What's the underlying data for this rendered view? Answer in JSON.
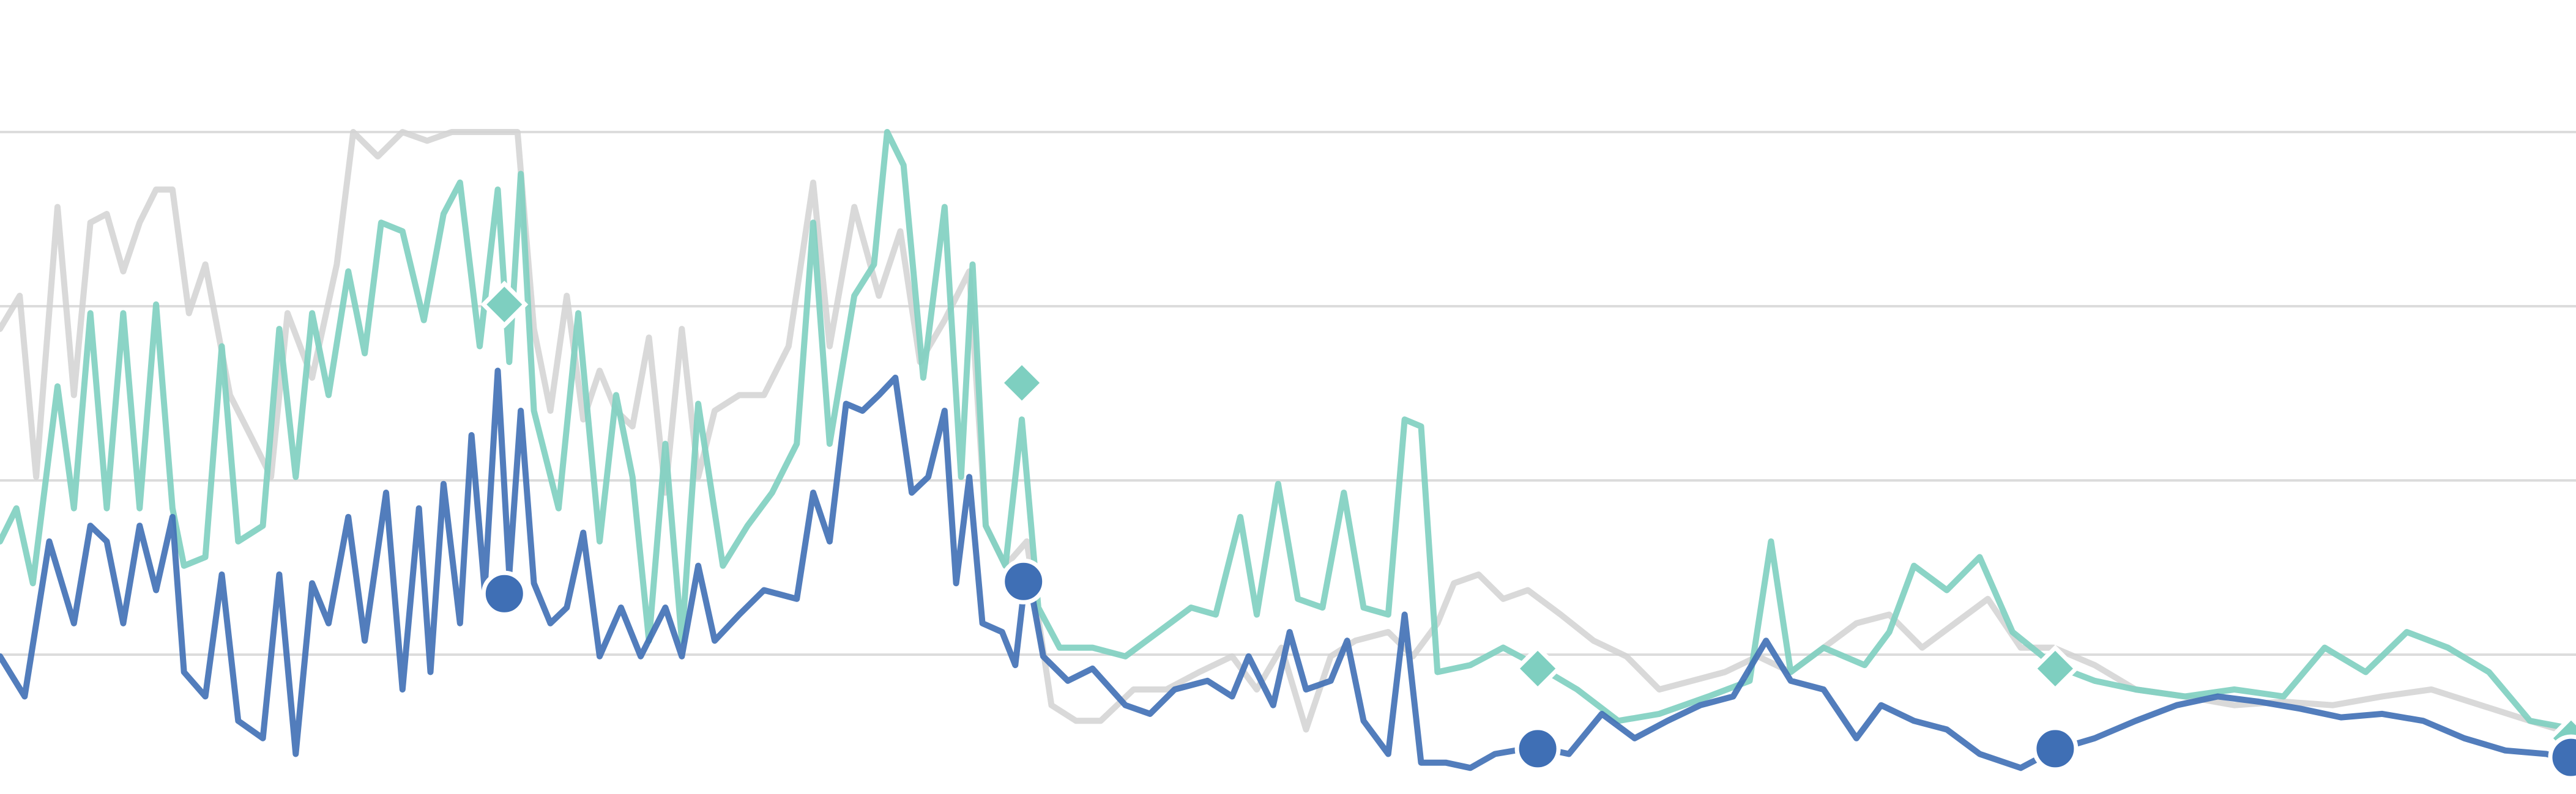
{
  "chart_data": {
    "type": "line",
    "xlim": [
      0,
      1568
    ],
    "ylim": [
      0.2,
      4.5
    ],
    "yticks": [
      1,
      2,
      3,
      4
    ],
    "grid": true,
    "series": [
      {
        "color": "#d2d2d2",
        "x": [
          0,
          12,
          22,
          35,
          45,
          55,
          65,
          75,
          85,
          95,
          105,
          115,
          125,
          140,
          155,
          165,
          175,
          190,
          205,
          215,
          230,
          245,
          260,
          275,
          290,
          305,
          315,
          325,
          335,
          345,
          355,
          365,
          375,
          385,
          395,
          405,
          415,
          425,
          435,
          450,
          465,
          480,
          495,
          505,
          520,
          535,
          548,
          560,
          575,
          590,
          600,
          612,
          625,
          640,
          655,
          670,
          690,
          710,
          730,
          750,
          765,
          780,
          795,
          810,
          825,
          845,
          860,
          875,
          885,
          900,
          915,
          930,
          950,
          970,
          990,
          1010,
          1030,
          1050,
          1070,
          1090,
          1110,
          1130,
          1150,
          1170,
          1190,
          1210,
          1230,
          1250,
          1275,
          1300,
          1330,
          1360,
          1390,
          1420,
          1450,
          1480,
          1510,
          1540,
          1568
        ],
        "values": [
          2.87,
          3.06,
          2.02,
          3.57,
          2.49,
          3.48,
          3.53,
          3.2,
          3.48,
          3.67,
          3.67,
          2.96,
          3.24,
          2.49,
          2.21,
          2.02,
          2.96,
          2.59,
          3.24,
          4.0,
          3.86,
          4.0,
          3.95,
          4.0,
          4.0,
          4.0,
          4.0,
          2.87,
          2.4,
          3.06,
          2.35,
          2.63,
          2.4,
          2.31,
          2.82,
          1.93,
          2.87,
          2.02,
          2.4,
          2.49,
          2.49,
          2.77,
          3.71,
          2.77,
          3.57,
          3.06,
          3.43,
          2.68,
          2.92,
          3.2,
          1.74,
          1.51,
          1.65,
          0.71,
          0.62,
          0.62,
          0.8,
          0.8,
          0.9,
          0.99,
          0.8,
          1.04,
          0.57,
          0.99,
          1.08,
          1.13,
          0.99,
          1.18,
          1.41,
          1.46,
          1.32,
          1.37,
          1.23,
          1.08,
          0.99,
          0.8,
          0.85,
          0.9,
          0.99,
          0.9,
          1.04,
          1.18,
          1.23,
          1.04,
          1.18,
          1.32,
          1.04,
          1.04,
          0.94,
          0.8,
          0.76,
          0.71,
          0.73,
          0.71,
          0.76,
          0.8,
          0.71,
          0.62,
          0.54
        ]
      },
      {
        "color": "#7ecfc0",
        "marker": "diamond",
        "x": [
          0,
          10,
          20,
          35,
          45,
          55,
          65,
          75,
          85,
          95,
          105,
          112,
          125,
          135,
          145,
          160,
          170,
          180,
          190,
          200,
          212,
          222,
          232,
          245,
          258,
          270,
          280,
          292,
          303,
          310,
          317,
          325,
          340,
          352,
          365,
          375,
          385,
          395,
          405,
          415,
          425,
          440,
          455,
          470,
          485,
          495,
          505,
          520,
          532,
          540,
          550,
          562,
          575,
          585,
          592,
          600,
          612,
          622,
          632,
          645,
          665,
          685,
          705,
          725,
          740,
          755,
          765,
          778,
          790,
          805,
          818,
          830,
          845,
          855,
          865,
          875,
          895,
          915,
          935,
          960,
          985,
          1010,
          1040,
          1065,
          1078,
          1090,
          1110,
          1135,
          1150,
          1165,
          1185,
          1205,
          1225,
          1250,
          1275,
          1300,
          1330,
          1360,
          1390,
          1415,
          1440,
          1465,
          1490,
          1515,
          1540,
          1568
        ],
        "values": [
          1.65,
          1.84,
          1.41,
          2.54,
          1.84,
          2.96,
          1.84,
          2.96,
          1.84,
          3.01,
          1.84,
          1.51,
          1.56,
          2.77,
          1.65,
          1.74,
          2.87,
          2.02,
          2.96,
          2.49,
          3.2,
          2.73,
          3.48,
          3.43,
          2.92,
          3.53,
          3.71,
          2.77,
          3.67,
          2.68,
          3.76,
          2.4,
          1.84,
          2.96,
          1.65,
          2.49,
          2.02,
          1.08,
          2.21,
          1.08,
          2.44,
          1.51,
          1.74,
          1.93,
          2.21,
          3.48,
          2.21,
          3.06,
          3.24,
          4.0,
          3.81,
          2.59,
          3.57,
          2.02,
          3.24,
          1.74,
          1.51,
          2.35,
          1.27,
          1.04,
          1.04,
          0.99,
          1.13,
          1.27,
          1.23,
          1.79,
          1.23,
          1.98,
          1.32,
          1.27,
          1.93,
          1.27,
          1.23,
          2.35,
          2.31,
          0.9,
          0.94,
          1.04,
          0.94,
          0.8,
          0.62,
          0.66,
          0.76,
          0.85,
          1.65,
          0.9,
          1.04,
          0.94,
          1.13,
          1.51,
          1.37,
          1.56,
          1.13,
          0.94,
          0.85,
          0.8,
          0.76,
          0.8,
          0.76,
          1.04,
          0.9,
          1.13,
          1.04,
          0.9,
          0.62,
          0.57
        ],
        "markers": {
          "x": [
            307,
            622,
            936,
            1251,
            1565
          ],
          "values": [
            3.01,
            2.56,
            0.92,
            0.92,
            0.52
          ]
        }
      },
      {
        "color": "#3f6fb5",
        "marker": "circle",
        "x": [
          0,
          15,
          30,
          45,
          55,
          65,
          75,
          85,
          95,
          105,
          112,
          125,
          135,
          145,
          160,
          170,
          180,
          190,
          200,
          212,
          222,
          235,
          245,
          255,
          262,
          270,
          280,
          287,
          295,
          303,
          310,
          317,
          325,
          335,
          345,
          355,
          365,
          378,
          390,
          405,
          415,
          425,
          435,
          450,
          465,
          485,
          495,
          505,
          515,
          525,
          535,
          545,
          555,
          565,
          575,
          582,
          590,
          598,
          610,
          618,
          625,
          635,
          650,
          665,
          685,
          700,
          715,
          735,
          750,
          760,
          775,
          785,
          795,
          810,
          820,
          830,
          845,
          855,
          865,
          880,
          895,
          910,
          935,
          955,
          975,
          995,
          1015,
          1035,
          1055,
          1075,
          1090,
          1110,
          1130,
          1145,
          1165,
          1185,
          1205,
          1230,
          1250,
          1275,
          1300,
          1325,
          1350,
          1375,
          1400,
          1425,
          1450,
          1475,
          1500,
          1525,
          1550,
          1568
        ],
        "values": [
          0.99,
          0.76,
          1.65,
          1.18,
          1.74,
          1.65,
          1.18,
          1.74,
          1.37,
          1.79,
          0.9,
          0.76,
          1.46,
          0.62,
          0.52,
          1.46,
          0.43,
          1.41,
          1.18,
          1.79,
          1.08,
          1.93,
          0.8,
          1.84,
          0.9,
          1.98,
          1.18,
          2.26,
          1.37,
          2.63,
          1.46,
          2.4,
          1.41,
          1.18,
          1.27,
          1.7,
          0.99,
          1.27,
          0.99,
          1.27,
          0.99,
          1.51,
          1.08,
          1.23,
          1.37,
          1.32,
          1.93,
          1.65,
          2.44,
          2.4,
          2.49,
          2.59,
          1.93,
          2.02,
          2.4,
          1.41,
          2.02,
          1.18,
          1.13,
          0.94,
          1.51,
          0.99,
          0.85,
          0.92,
          0.71,
          0.66,
          0.8,
          0.85,
          0.76,
          0.99,
          0.71,
          1.13,
          0.8,
          0.85,
          1.08,
          0.62,
          0.43,
          1.23,
          0.38,
          0.38,
          0.35,
          0.43,
          0.47,
          0.43,
          0.66,
          0.52,
          0.62,
          0.71,
          0.76,
          1.08,
          0.85,
          0.8,
          0.52,
          0.71,
          0.62,
          0.57,
          0.43,
          0.35,
          0.45,
          0.52,
          0.62,
          0.71,
          0.76,
          0.73,
          0.69,
          0.64,
          0.66,
          0.62,
          0.52,
          0.45,
          0.43,
          0.38
        ],
        "markers": {
          "x": [
            307,
            623,
            936,
            1251,
            1565
          ],
          "values": [
            1.35,
            1.42,
            0.46,
            0.46,
            0.41
          ]
        }
      }
    ]
  }
}
